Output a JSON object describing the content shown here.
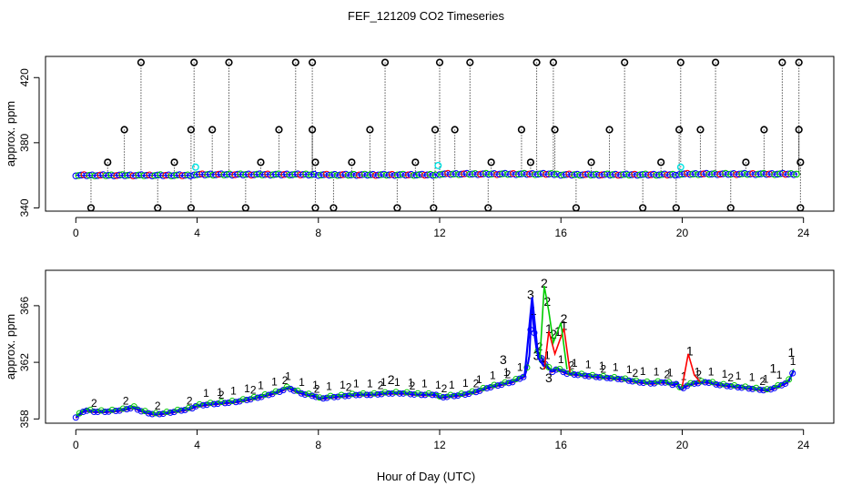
{
  "title": "FEF_121209  CO2 Timeseries",
  "xlabel": "Hour of Day (UTC)",
  "colors": {
    "s1": "#ff0000",
    "s2": "#00cc00",
    "s3": "#0000ff",
    "flag": "#000000",
    "cyan": "#00e5e5",
    "axis": "#000000"
  },
  "chart_data": [
    {
      "type": "scatter",
      "panel": "top",
      "ylabel": "approx. ppm",
      "xlim": [
        -1,
        25
      ],
      "ylim": [
        338,
        433
      ],
      "xticks": [
        0,
        4,
        8,
        12,
        16,
        20,
        24
      ],
      "yticks": [
        340,
        380,
        420
      ],
      "baseline_segments": [
        [
          0.0,
          3.8,
          360.0
        ],
        [
          3.9,
          7.9,
          360.5
        ],
        [
          8.0,
          11.9,
          360.3
        ],
        [
          12.0,
          15.9,
          360.8
        ],
        [
          16.0,
          19.8,
          360.4
        ],
        [
          19.9,
          23.8,
          360.8
        ]
      ],
      "flags_high": [
        2.15,
        3.9,
        5.05,
        7.25,
        7.8,
        10.2,
        12.0,
        13.0,
        15.2,
        15.75,
        18.1,
        19.95,
        21.1,
        23.3,
        23.85
      ],
      "flags_mid": [
        1.6,
        3.8,
        4.5,
        6.7,
        7.8,
        9.7,
        11.85,
        12.5,
        14.7,
        15.8,
        17.6,
        19.9,
        20.6,
        22.7,
        23.85
      ],
      "flags_low": [
        1.05,
        3.25,
        6.1,
        7.9,
        9.1,
        11.2,
        13.7,
        15.0,
        17.0,
        19.3,
        22.1,
        23.9
      ],
      "flags_bottom": [
        0.5,
        2.7,
        3.8,
        5.6,
        7.9,
        8.5,
        10.6,
        11.8,
        13.6,
        16.5,
        18.7,
        19.8,
        21.6,
        23.9
      ],
      "cyan_points": [
        [
          3.95,
          365
        ],
        [
          11.95,
          366
        ],
        [
          19.95,
          365
        ]
      ]
    },
    {
      "type": "line",
      "panel": "bottom",
      "ylabel": "approx. ppm",
      "xlim": [
        -1,
        25
      ],
      "ylim": [
        357.7,
        368.5
      ],
      "xticks": [
        0,
        4,
        8,
        12,
        16,
        20,
        24
      ],
      "yticks": [
        358,
        362,
        366
      ],
      "ytick_labels": [
        "358",
        "362",
        "366"
      ],
      "base_series": {
        "name": "3",
        "x": [
          0,
          0.3,
          0.6,
          1.0,
          1.5,
          1.9,
          2.2,
          2.6,
          3.0,
          3.5,
          3.8,
          3.95,
          4.0,
          4.3,
          4.8,
          5.3,
          5.8,
          6.2,
          6.7,
          7.0,
          7.3,
          7.6,
          7.9,
          8.0,
          8.3,
          8.8,
          9.3,
          9.8,
          10.3,
          10.8,
          11.3,
          11.9,
          12.0,
          12.4,
          12.8,
          13.2,
          13.6,
          14.0,
          14.4,
          14.8,
          14.95,
          15.05,
          15.15,
          15.3,
          15.5,
          15.7,
          15.85,
          16.0,
          16.2,
          16.6,
          17.0,
          17.5,
          18.0,
          18.5,
          19.0,
          19.4,
          19.7,
          19.85,
          19.95,
          20.1,
          20.4,
          20.8,
          21.2,
          21.6,
          22.0,
          22.4,
          22.8,
          23.2,
          23.5,
          23.7
        ],
        "values": [
          358.1,
          358.6,
          358.5,
          358.5,
          358.6,
          358.8,
          358.5,
          358.3,
          358.4,
          358.6,
          358.7,
          358.9,
          358.9,
          359.0,
          359.1,
          359.2,
          359.4,
          359.6,
          359.9,
          360.2,
          359.9,
          359.7,
          359.6,
          359.4,
          359.5,
          359.6,
          359.7,
          359.7,
          359.8,
          359.8,
          359.7,
          359.7,
          359.5,
          359.6,
          359.7,
          359.9,
          360.2,
          360.4,
          360.6,
          361.0,
          362.0,
          366.6,
          363.0,
          362.5,
          361.8,
          361.3,
          361.5,
          361.4,
          361.2,
          361.1,
          361.0,
          360.9,
          360.8,
          360.6,
          360.5,
          360.6,
          360.4,
          360.5,
          360.0,
          360.3,
          360.5,
          360.6,
          360.4,
          360.3,
          360.2,
          360.1,
          360.0,
          360.3,
          360.6,
          361.5
        ]
      },
      "series": [
        {
          "name": "1",
          "color": "#ff0000",
          "x": [
            15.6,
            15.9,
            16.1,
            20.25,
            23.0,
            23.6
          ],
          "values": [
            364.4,
            364.2,
            364.6,
            362.8,
            361.6,
            362.7
          ]
        },
        {
          "name": "2",
          "color": "#00cc00",
          "x": [
            10.4,
            15.45,
            15.55,
            15.75,
            16.1
          ],
          "values": [
            360.8,
            367.6,
            366.3,
            364.0,
            365.1
          ]
        },
        {
          "name": "3",
          "color": "#0000ff",
          "x": [
            14.1,
            15.0,
            15.2,
            15.4,
            15.6
          ],
          "values": [
            362.2,
            366.8,
            362.5,
            361.8,
            360.9
          ]
        }
      ]
    }
  ]
}
